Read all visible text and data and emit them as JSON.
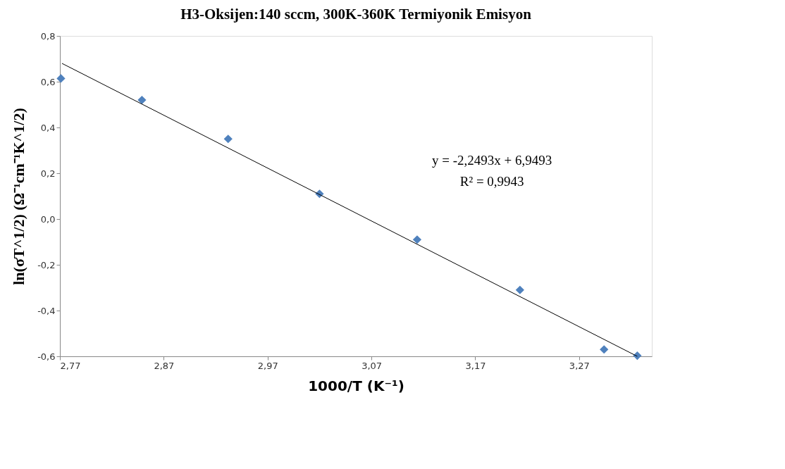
{
  "chart_data": {
    "type": "scatter",
    "title": "H3-Oksijen:140 sccm, 300K-360K Termiyonik  Emisyon",
    "xlabel": "1000/T  (K⁻¹)",
    "ylabel": "ln(σT^1/2) (Ω⁻¹cm⁻¹K^1/2)",
    "x": [
      2.771,
      2.849,
      2.932,
      3.02,
      3.114,
      3.213,
      3.294,
      3.326
    ],
    "series": [
      {
        "color": "#4f81bd",
        "values": [
          0.614,
          0.52,
          0.35,
          0.11,
          -0.09,
          -0.31,
          -0.57,
          -0.597
        ],
        "marker": "diamond"
      },
      {
        "type": "line",
        "color": "#000000",
        "x": [
          2.772,
          3.326
        ],
        "values": [
          0.68,
          -0.6
        ],
        "marker": "none"
      }
    ],
    "xlim": [
      2.77,
      3.34
    ],
    "xticks": [
      {
        "value": 2.77,
        "label": "2,77"
      },
      {
        "value": 2.87,
        "label": "2,87"
      },
      {
        "value": 2.97,
        "label": "2,97"
      },
      {
        "value": 3.07,
        "label": "3,07"
      },
      {
        "value": 3.17,
        "label": "3,17"
      },
      {
        "value": 3.27,
        "label": "3,27"
      }
    ],
    "ylim": [
      -0.6,
      0.8
    ],
    "yticks": [
      {
        "value": -0.6,
        "label": "-0,6"
      },
      {
        "value": -0.4,
        "label": "-0,4"
      },
      {
        "value": -0.2,
        "label": "-0,2"
      },
      {
        "value": 0.0,
        "label": "0,0"
      },
      {
        "value": 0.2,
        "label": "0,2"
      },
      {
        "value": 0.4,
        "label": "0,4"
      },
      {
        "value": 0.6,
        "label": "0,6"
      },
      {
        "value": 0.8,
        "label": "0,8"
      }
    ],
    "annotations": [
      "y = -2,2493x + 6,9493",
      "R² = 0,9943"
    ],
    "grid": false
  }
}
